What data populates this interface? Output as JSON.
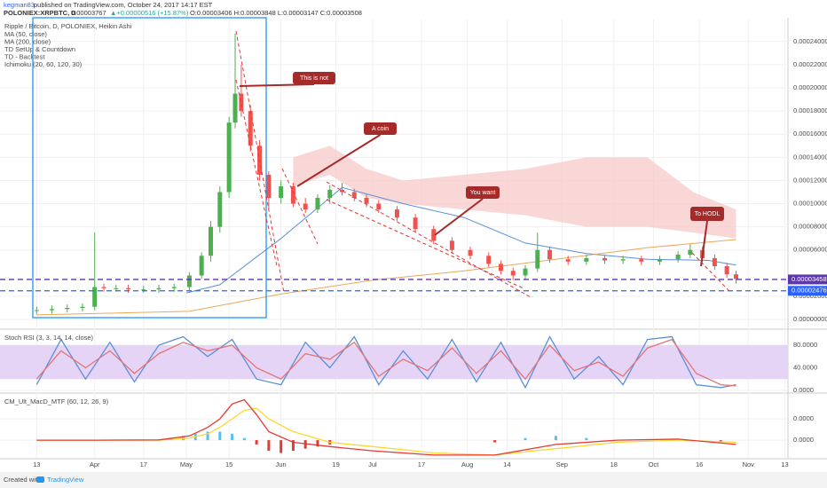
{
  "header": {
    "user": "kegman83",
    "published": "published on TradingView.com, October 24, 2017 14:17 EST",
    "symbol": "POLONIEX:XRPBTC, D",
    "last": "0.00003767",
    "change": "▲+0.00000516 (+15.87%)",
    "ohlc": "O:0.00003406 H:0.00003848 L:0.00003147 C:0.00003508"
  },
  "footer": {
    "created": "Created with",
    "brand": "TradingView"
  },
  "chart_data": [
    {
      "type": "candlestick",
      "title": "Ripple / Bitcoin, D, POLONIEX, Heikin Ashi",
      "studies": [
        "TD SetUp & Countdown",
        "TD - Backtest"
      ],
      "up_color": "#4caf50",
      "down_color": "#ef5350",
      "grid": true,
      "xlim": [
        -12,
        246
      ],
      "xticks": [
        {
          "value": 0,
          "label": "13"
        },
        {
          "value": 19,
          "label": "Apr"
        },
        {
          "value": 35,
          "label": "17"
        },
        {
          "value": 49,
          "label": "May"
        },
        {
          "value": 63,
          "label": "15"
        },
        {
          "value": 80,
          "label": "Jun"
        },
        {
          "value": 98,
          "label": "19"
        },
        {
          "value": 110,
          "label": "Jul"
        },
        {
          "value": 126,
          "label": "17"
        },
        {
          "value": 141,
          "label": "Aug"
        },
        {
          "value": 154,
          "label": "14"
        },
        {
          "value": 172,
          "label": "Sep"
        },
        {
          "value": 189,
          "label": "18"
        },
        {
          "value": 202,
          "label": "Oct"
        },
        {
          "value": 217,
          "label": "16"
        },
        {
          "value": 233,
          "label": "Nov"
        },
        {
          "value": 245,
          "label": "13"
        }
      ],
      "ylim": [
        -7.6e-06,
        0.000259
      ],
      "yticks": [
        {
          "value": 0.00024,
          "label": "0.00024000"
        },
        {
          "value": 0.00022,
          "label": "0.00022000"
        },
        {
          "value": 0.0002,
          "label": "0.00020000"
        },
        {
          "value": 0.00018,
          "label": "0.00018000"
        },
        {
          "value": 0.00016,
          "label": "0.00016000"
        },
        {
          "value": 0.00014,
          "label": "0.00014000"
        },
        {
          "value": 0.00012,
          "label": "0.00012000"
        },
        {
          "value": 0.0001,
          "label": "0.00010000"
        },
        {
          "value": 8e-05,
          "label": "0.00008000"
        },
        {
          "value": 6e-05,
          "label": "0.00006000"
        },
        {
          "value": 2e-05,
          "label": "0.00002000"
        },
        {
          "value": 0,
          "label": "0.00000000"
        }
      ],
      "x": [
        0,
        5,
        10,
        15,
        19,
        22,
        26,
        30,
        35,
        40,
        45,
        50,
        54,
        57,
        60,
        63,
        65,
        67,
        70,
        73,
        76,
        80,
        84,
        88,
        92,
        96,
        100,
        104,
        108,
        112,
        118,
        124,
        130,
        136,
        142,
        148,
        152,
        156,
        160,
        164,
        168,
        174,
        180,
        186,
        192,
        198,
        204,
        210,
        214,
        218,
        222,
        226,
        229
      ],
      "open": [
        7.5e-06,
        8e-06,
        9e-06,
        1e-05,
        1.1e-05,
        2.8e-05,
        2.7e-05,
        2.7e-05,
        2.6e-05,
        2.6e-05,
        2.7e-05,
        2.8e-05,
        3.8e-05,
        5.5e-05,
        8e-05,
        0.00011,
        0.00017,
        0.000195,
        0.00018,
        0.00015,
        0.000125,
        0.000105,
        0.000115,
        0.0001,
        9.5e-05,
        0.000105,
        0.000112,
        0.00011,
        0.000105,
        0.0001,
        9.5e-05,
        8.8e-05,
        7.8e-05,
        6.8e-05,
        6e-05,
        5.5e-05,
        4.8e-05,
        4.2e-05,
        3.8e-05,
        4.4e-05,
        6e-05,
        5.2e-05,
        5e-05,
        5.3e-05,
        5.1e-05,
        5.2e-05,
        5e-05,
        5.2e-05,
        5.6e-05,
        6e-05,
        5.3e-05,
        4.6e-05,
        3.9e-05
      ],
      "high": [
        1.1e-05,
        1.2e-05,
        1.3e-05,
        1.4e-05,
        7.5e-05,
        3.1e-05,
        3e-05,
        3e-05,
        2.9e-05,
        3e-05,
        3.1e-05,
        4.1e-05,
        5.8e-05,
        8.5e-05,
        0.000115,
        0.000175,
        0.000247,
        0.00022,
        0.000185,
        0.000155,
        0.000128,
        0.00012,
        0.000118,
        0.000105,
        0.000108,
        0.000116,
        0.000118,
        0.000113,
        0.000108,
        0.000103,
        9.8e-05,
        9.1e-05,
        8.1e-05,
        7.1e-05,
        6.3e-05,
        5.8e-05,
        5.1e-05,
        4.5e-05,
        4.7e-05,
        7.5e-05,
        6.3e-05,
        5.5e-05,
        5.6e-05,
        5.6e-05,
        5.5e-05,
        5.5e-05,
        5.5e-05,
        5.9e-05,
        6.5e-05,
        6.3e-05,
        5.6e-05,
        4.9e-05,
        4.2e-05
      ],
      "low": [
        4.5e-06,
        5e-06,
        6e-06,
        7e-06,
        8e-06,
        2.4e-05,
        2.4e-05,
        2.3e-05,
        2.3e-05,
        2.3e-05,
        2.4e-05,
        2.5e-05,
        3.5e-05,
        5e-05,
        7.5e-05,
        0.000105,
        0.000165,
        0.000175,
        0.000145,
        0.00012,
        9.5e-05,
        0.0001,
        9.7e-05,
        9.2e-05,
        9.2e-05,
        0.0001,
        0.000107,
        0.000102,
        9.7e-05,
        9.2e-05,
        8.5e-05,
        7.5e-05,
        6.5e-05,
        5.7e-05,
        5.2e-05,
        4.5e-05,
        3.9e-05,
        3.4e-05,
        3.5e-05,
        4.1e-05,
        4.9e-05,
        4.7e-05,
        4.7e-05,
        4.8e-05,
        4.8e-05,
        4.7e-05,
        4.7e-05,
        4.9e-05,
        5.3e-05,
        5e-05,
        4.3e-05,
        3.6e-05,
        3.1e-05
      ],
      "close": [
        8e-06,
        9e-06,
        1e-05,
        1.1e-05,
        2.8e-05,
        2.7e-05,
        2.7e-05,
        2.6e-05,
        2.6e-05,
        2.7e-05,
        2.8e-05,
        3.8e-05,
        5.5e-05,
        8e-05,
        0.00011,
        0.00017,
        0.000195,
        0.00018,
        0.00015,
        0.000125,
        0.000105,
        0.000115,
        0.0001,
        9.5e-05,
        0.000105,
        0.000112,
        0.00011,
        0.000105,
        0.0001,
        9.5e-05,
        8.8e-05,
        7.8e-05,
        6.8e-05,
        6e-05,
        5.5e-05,
        4.8e-05,
        4.2e-05,
        3.8e-05,
        4.4e-05,
        6e-05,
        5.2e-05,
        5e-05,
        5.3e-05,
        5.1e-05,
        5.2e-05,
        5e-05,
        5.2e-05,
        5.6e-05,
        6e-05,
        5.3e-05,
        4.6e-05,
        3.9e-05,
        3.5e-05
      ],
      "series": [
        {
          "name": "MA (50, close)",
          "color": "#5b8fd9",
          "x": [
            49,
            60,
            80,
            100,
            120,
            140,
            160,
            180,
            200,
            220,
            229
          ],
          "values": [
            2.3e-05,
            3e-05,
            7e-05,
            0.000114,
            0.0001,
            8.8e-05,
            6.6e-05,
            5.7e-05,
            5.2e-05,
            5.1e-05,
            4.7e-05
          ]
        },
        {
          "name": "MA (200, close)",
          "color": "#e8a85a",
          "x": [
            0,
            50,
            80,
            110,
            140,
            170,
            200,
            229
          ],
          "values": [
            4e-06,
            7e-06,
            2.2e-05,
            3.4e-05,
            4.2e-05,
            5.2e-05,
            6.2e-05,
            6.9e-05
          ]
        }
      ],
      "cloud": {
        "name": "Ichimoku (20, 60, 120, 30)",
        "color": "#f8c6c6",
        "x": [
          84,
          96,
          108,
          120,
          140,
          160,
          180,
          200,
          215,
          229
        ],
        "upper": [
          0.00014,
          0.00015,
          0.00013,
          0.00012,
          0.000125,
          0.00013,
          0.00014,
          0.00014,
          0.00011,
          9.5e-05
        ],
        "lower": [
          0.000115,
          0.000125,
          0.000105,
          0.0001,
          9.5e-05,
          9e-05,
          8e-05,
          8e-05,
          7.5e-05,
          7e-05
        ]
      },
      "price_lines": [
        {
          "value": 3.458e-05,
          "label": "0.00003458",
          "color": "#5e35b1"
        },
        {
          "value": 2.476e-05,
          "label": "0.00002476",
          "color": "#2962ff"
        }
      ],
      "annotations": [
        "This is not",
        "A coin",
        "You want",
        "To HODL"
      ]
    },
    {
      "type": "line",
      "title": "Stoch RSI (3, 3, 14, 14, close)",
      "ylim": [
        -1.6,
        106.7
      ],
      "yticks": [
        {
          "value": 80,
          "label": "80.0000"
        },
        {
          "value": 40,
          "label": "40.0000"
        },
        {
          "value": 0,
          "label": "0.0000"
        }
      ],
      "band": [
        20,
        80
      ],
      "band_color": "#e6d4f7",
      "x": [
        0,
        8,
        16,
        24,
        32,
        40,
        48,
        56,
        64,
        72,
        80,
        88,
        96,
        104,
        112,
        120,
        128,
        136,
        144,
        152,
        160,
        168,
        176,
        184,
        192,
        200,
        208,
        216,
        224,
        229
      ],
      "series": [
        {
          "color": "#5b8fd9",
          "values": [
            10,
            90,
            20,
            85,
            15,
            80,
            95,
            60,
            90,
            20,
            10,
            85,
            40,
            95,
            10,
            70,
            20,
            90,
            15,
            85,
            5,
            95,
            20,
            60,
            10,
            90,
            95,
            10,
            5,
            10
          ]
        },
        {
          "color": "#e57373",
          "values": [
            20,
            70,
            40,
            70,
            30,
            65,
            85,
            70,
            80,
            40,
            20,
            65,
            55,
            85,
            25,
            55,
            35,
            75,
            30,
            70,
            20,
            80,
            35,
            50,
            25,
            75,
            90,
            30,
            10,
            8
          ]
        }
      ]
    },
    {
      "type": "line",
      "title": "CM_Ult_MacD_MTF (60, 12, 26, 9)",
      "ylim": [
        -8.3e-06,
        2.17e-05
      ],
      "yticks": [
        {
          "value": 1e-05,
          "label": "0.0000"
        },
        {
          "value": 0,
          "label": "0.0000"
        }
      ],
      "hist_up_color": "#4fc3f7",
      "hist_down_color": "#e53935",
      "x": [
        0,
        20,
        40,
        50,
        56,
        60,
        64,
        68,
        72,
        76,
        84,
        96,
        110,
        130,
        150,
        170,
        190,
        210,
        229
      ],
      "series": [
        {
          "color": "#fdd835",
          "values": [
            0,
            0,
            0,
            1e-06,
            3e-06,
            6e-06,
            1e-05,
            1.4e-05,
            1.5e-05,
            1e-05,
            4e-06,
            -1e-06,
            -3e-06,
            -6e-06,
            -7e-06,
            -4e-06,
            -1e-06,
            0,
            -1e-06
          ]
        },
        {
          "color": "#e53935",
          "values": [
            0,
            0,
            1e-07,
            2e-06,
            6e-06,
            1e-05,
            1.7e-05,
            1.9e-05,
            1.2e-05,
            4e-06,
            -1e-06,
            -3e-06,
            -5e-06,
            -7e-06,
            -7e-06,
            -2e-06,
            0,
            5e-07,
            -2e-06
          ]
        }
      ],
      "histogram": {
        "x": [
          44,
          48,
          52,
          56,
          60,
          64,
          68,
          72,
          76,
          80,
          84,
          88,
          92,
          96,
          150,
          160,
          170,
          180,
          200,
          224
        ],
        "values": [
          1e-06,
          2e-06,
          3e-06,
          4e-06,
          4e-06,
          3e-06,
          1e-06,
          -2e-06,
          -5e-06,
          -6e-06,
          -5e-06,
          -4e-06,
          -3e-06,
          -2e-06,
          -1e-06,
          1e-06,
          2e-06,
          1e-06,
          5e-07,
          -1e-06
        ]
      }
    }
  ]
}
